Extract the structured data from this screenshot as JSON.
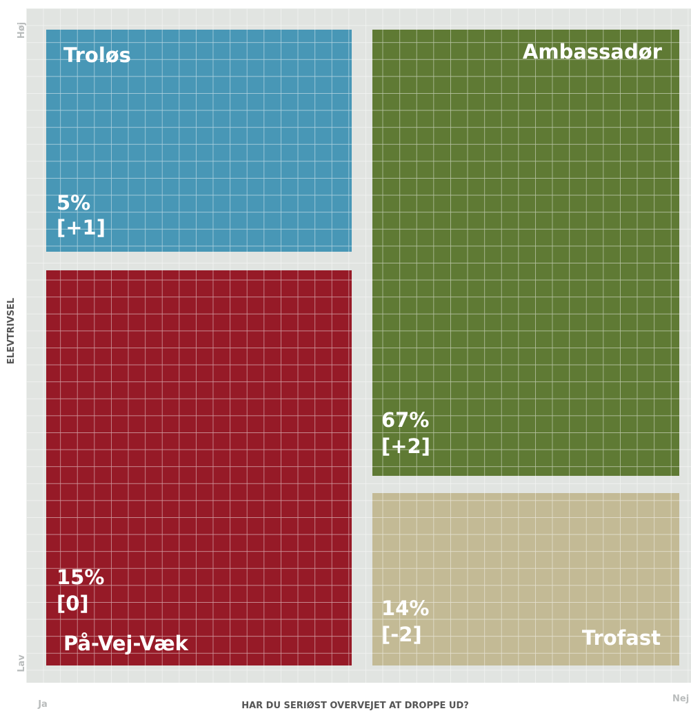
{
  "axes": {
    "y_title": "ELEVTRIVSEL",
    "y_high": "Høj",
    "y_low": "Lav",
    "x_title": "HAR DU SERIØST OVERVEJET AT DROPPE UD?",
    "x_left": "Ja",
    "x_right": "Nej"
  },
  "quadrants": [
    {
      "name": "Troløs",
      "value": "5%",
      "change": "[+1]"
    },
    {
      "name": "Ambassadør",
      "value": "67%",
      "change": "[+2]"
    },
    {
      "name": "På-Vej-Væk",
      "value": "15%",
      "change": "[0]"
    },
    {
      "name": "Trofast",
      "value": "14%",
      "change": "[-2]"
    }
  ]
}
